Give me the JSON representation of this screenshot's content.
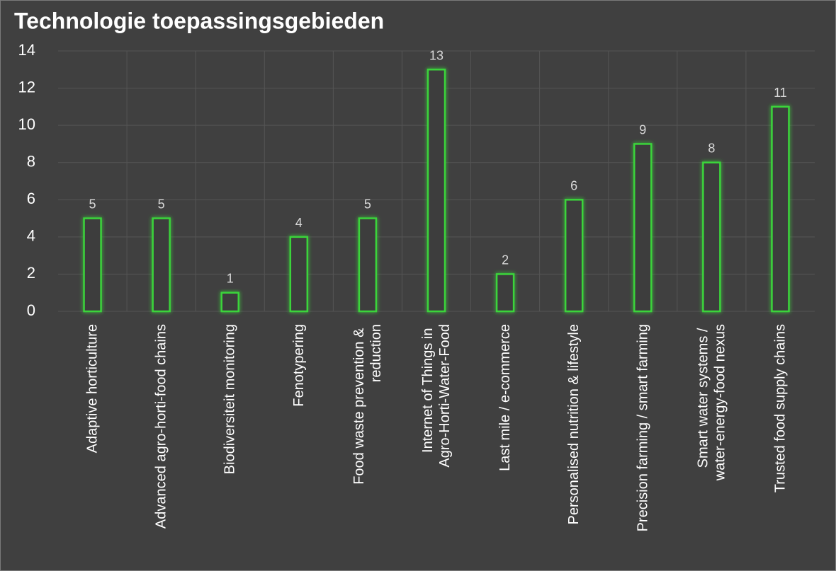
{
  "chart_data": {
    "type": "bar",
    "title": "Technologie toepassingsgebieden",
    "categories": [
      "Adaptive horticulture",
      "Advanced agro-horti-food chains",
      "Biodiversiteit monitoring",
      "Fenotypering",
      "Food waste prevention & reduction",
      "Internet of Things in Agro-Horti-Water-Food",
      "Last mile / e-commerce",
      "Personalised nutrition & lifestyle",
      "Precision farming / smart farming",
      "Smart water systems / water-energy-food nexus",
      "Trusted food supply chains"
    ],
    "values": [
      5,
      5,
      1,
      4,
      5,
      13,
      2,
      6,
      9,
      8,
      11
    ],
    "color": "#3ad43a",
    "ylim": [
      0,
      14
    ],
    "yticks": [
      0,
      2,
      4,
      6,
      8,
      10,
      12,
      14
    ],
    "grid": true
  }
}
